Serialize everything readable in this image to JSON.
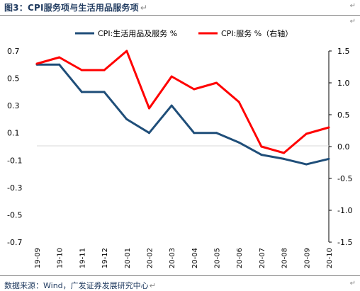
{
  "header": {
    "title": "图3：CPI服务项与生活用品服务项",
    "return_mark": "↵"
  },
  "footer": {
    "source": "数据来源：Wind，广发证券发展研究中心"
  },
  "colors": {
    "series_left": "#1f4e79",
    "series_right": "#ff0000",
    "title": "#1f3a5f"
  },
  "chart_data": {
    "type": "line",
    "x": [
      "19-09",
      "19-10",
      "19-11",
      "19-12",
      "20-01",
      "20-02",
      "20-03",
      "20-04",
      "20-05",
      "20-06",
      "20-07",
      "20-08",
      "20-09",
      "20-10"
    ],
    "series": [
      {
        "name": "CPI:生活用品及服务 %",
        "axis": "left",
        "color": "#1f4e79",
        "values": [
          0.6,
          0.6,
          0.4,
          0.4,
          0.2,
          0.1,
          0.3,
          0.1,
          0.1,
          0.03,
          -0.06,
          -0.09,
          -0.13,
          -0.09
        ]
      },
      {
        "name": "CPI:服务 %（右轴）",
        "axis": "right",
        "color": "#ff0000",
        "values": [
          1.3,
          1.4,
          1.2,
          1.2,
          1.5,
          0.6,
          1.1,
          0.9,
          1.0,
          0.7,
          0.0,
          -0.1,
          0.2,
          0.3
        ]
      }
    ],
    "y_left": {
      "ylim": [
        -0.7,
        0.7
      ],
      "ticks": [
        "0.7",
        "0.5",
        "0.3",
        "0.1",
        "-0.1",
        "-0.3",
        "-0.5",
        "-0.7"
      ]
    },
    "y_right": {
      "ylim": [
        -1.5,
        1.5
      ],
      "ticks": [
        "1.5",
        "1.0",
        "0.5",
        "0.0",
        "-0.5",
        "-1.0",
        "-1.5"
      ]
    },
    "legend_position": "top",
    "grid": false
  }
}
